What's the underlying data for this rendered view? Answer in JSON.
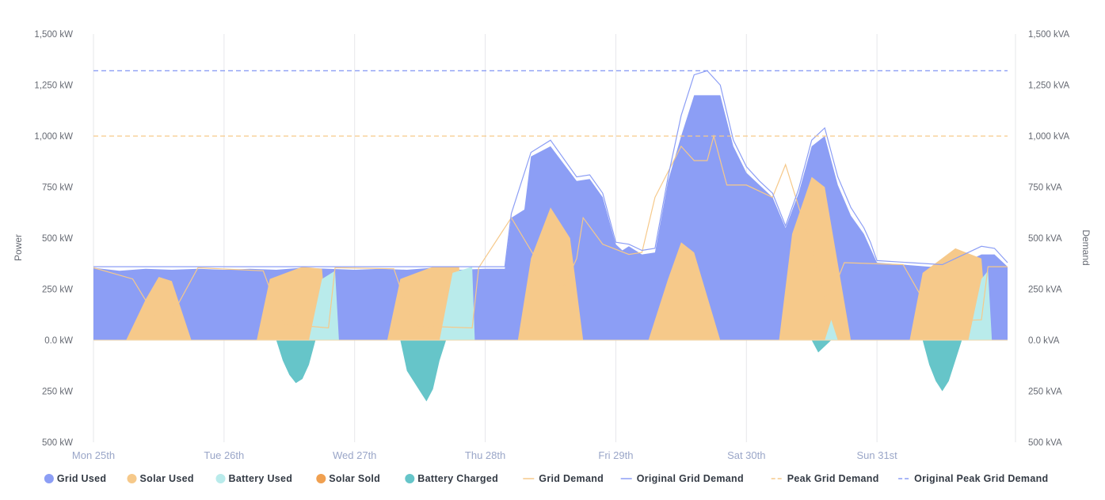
{
  "chart_data": {
    "type": "area",
    "x_categories": [
      "Mon 25th",
      "Tue 26th",
      "Wed 27th",
      "Thu 28th",
      "Fri 29th",
      "Sat 30th",
      "Sun 31st"
    ],
    "y_left": {
      "label": "Power",
      "range": [
        -500,
        1500
      ],
      "ticks": [
        1500,
        1250,
        1000,
        750,
        500,
        250,
        0,
        -250,
        -500
      ],
      "tick_labels": [
        "1,500 kW",
        "1,250 kW",
        "1,000 kW",
        "750 kW",
        "500 kW",
        "250 kW",
        "0.0 kW",
        "250 kW",
        "500 kW"
      ]
    },
    "y_right": {
      "label": "Demand",
      "range": [
        -500,
        1500
      ],
      "tick_labels": [
        "1,500 kVA",
        "1,250 kVA",
        "1,000 kVA",
        "750 kVA",
        "500 kVA",
        "250 kVA",
        "0.0 kVA",
        "250 kVA",
        "500 kVA"
      ]
    },
    "x_unit": "day",
    "x_range": [
      0,
      7
    ],
    "grid": "vertical",
    "legend_position": "bottom",
    "series": [
      {
        "name": "Grid Used",
        "kind": "area",
        "color": "#8c9ef5",
        "points": [
          [
            0,
            355
          ],
          [
            0.2,
            340
          ],
          [
            0.4,
            350
          ],
          [
            0.6,
            345
          ],
          [
            0.8,
            350
          ],
          [
            1.0,
            345
          ],
          [
            1.2,
            350
          ],
          [
            1.4,
            345
          ],
          [
            1.6,
            355
          ],
          [
            1.8,
            350
          ],
          [
            2.0,
            345
          ],
          [
            2.2,
            350
          ],
          [
            2.4,
            345
          ],
          [
            2.6,
            355
          ],
          [
            2.8,
            345
          ],
          [
            3.0,
            350
          ],
          [
            3.15,
            350
          ],
          [
            3.2,
            600
          ],
          [
            3.3,
            640
          ],
          [
            3.35,
            900
          ],
          [
            3.5,
            950
          ],
          [
            3.7,
            780
          ],
          [
            3.8,
            790
          ],
          [
            3.9,
            700
          ],
          [
            4.0,
            470
          ],
          [
            4.05,
            440
          ],
          [
            4.1,
            460
          ],
          [
            4.2,
            420
          ],
          [
            4.3,
            430
          ],
          [
            4.4,
            780
          ],
          [
            4.5,
            1000
          ],
          [
            4.6,
            1200
          ],
          [
            4.7,
            1200
          ],
          [
            4.8,
            1200
          ],
          [
            4.9,
            950
          ],
          [
            5.0,
            820
          ],
          [
            5.1,
            760
          ],
          [
            5.2,
            700
          ],
          [
            5.3,
            550
          ],
          [
            5.4,
            720
          ],
          [
            5.5,
            950
          ],
          [
            5.6,
            1000
          ],
          [
            5.7,
            760
          ],
          [
            5.8,
            610
          ],
          [
            5.9,
            520
          ],
          [
            5.95,
            450
          ],
          [
            6.0,
            380
          ],
          [
            6.2,
            370
          ],
          [
            6.4,
            360
          ],
          [
            6.6,
            360
          ],
          [
            6.8,
            420
          ],
          [
            6.9,
            420
          ],
          [
            7.0,
            360
          ]
        ]
      },
      {
        "name": "Solar Used",
        "kind": "area",
        "color": "#f6c98a",
        "points": [
          [
            0.25,
            0
          ],
          [
            0.4,
            200
          ],
          [
            0.5,
            310
          ],
          [
            0.6,
            290
          ],
          [
            0.75,
            0
          ],
          [
            1.25,
            0
          ],
          [
            1.35,
            300
          ],
          [
            1.6,
            360
          ],
          [
            1.75,
            350
          ],
          [
            1.8,
            0
          ],
          [
            2.25,
            0
          ],
          [
            2.35,
            300
          ],
          [
            2.6,
            360
          ],
          [
            2.8,
            360
          ],
          [
            2.85,
            0
          ],
          [
            3.25,
            0
          ],
          [
            3.35,
            400
          ],
          [
            3.5,
            650
          ],
          [
            3.65,
            500
          ],
          [
            3.75,
            0
          ],
          [
            4.25,
            0
          ],
          [
            4.4,
            300
          ],
          [
            4.5,
            480
          ],
          [
            4.6,
            430
          ],
          [
            4.8,
            0
          ],
          [
            5.25,
            0
          ],
          [
            5.35,
            520
          ],
          [
            5.5,
            800
          ],
          [
            5.6,
            750
          ],
          [
            5.8,
            0
          ],
          [
            6.25,
            0
          ],
          [
            6.35,
            330
          ],
          [
            6.6,
            450
          ],
          [
            6.8,
            400
          ],
          [
            6.85,
            0
          ]
        ]
      },
      {
        "name": "Battery Used",
        "kind": "area",
        "color": "#b9ebeb",
        "points": [
          [
            1.65,
            0
          ],
          [
            1.75,
            300
          ],
          [
            1.85,
            340
          ],
          [
            1.88,
            0
          ],
          [
            2.65,
            0
          ],
          [
            2.75,
            330
          ],
          [
            2.9,
            360
          ],
          [
            2.92,
            0
          ],
          [
            5.6,
            0
          ],
          [
            5.65,
            100
          ],
          [
            5.7,
            0
          ],
          [
            6.7,
            0
          ],
          [
            6.8,
            300
          ],
          [
            6.85,
            340
          ],
          [
            6.88,
            0
          ]
        ]
      },
      {
        "name": "Solar Sold",
        "kind": "area",
        "color": "#f0a050",
        "points": []
      },
      {
        "name": "Battery Charged",
        "kind": "area",
        "color": "#66c5c9",
        "points": [
          [
            1.4,
            0
          ],
          [
            1.45,
            -100
          ],
          [
            1.5,
            -170
          ],
          [
            1.55,
            -210
          ],
          [
            1.6,
            -190
          ],
          [
            1.65,
            -120
          ],
          [
            1.7,
            0
          ],
          [
            2.35,
            0
          ],
          [
            2.4,
            -150
          ],
          [
            2.5,
            -250
          ],
          [
            2.55,
            -300
          ],
          [
            2.6,
            -240
          ],
          [
            2.65,
            -100
          ],
          [
            2.7,
            0
          ],
          [
            5.5,
            0
          ],
          [
            5.55,
            -60
          ],
          [
            5.6,
            -30
          ],
          [
            5.65,
            0
          ],
          [
            6.35,
            0
          ],
          [
            6.4,
            -120
          ],
          [
            6.45,
            -200
          ],
          [
            6.5,
            -250
          ],
          [
            6.55,
            -200
          ],
          [
            6.6,
            -100
          ],
          [
            6.65,
            0
          ]
        ]
      },
      {
        "name": "Grid Demand",
        "kind": "line",
        "color": "#f6c98a",
        "points": [
          [
            0,
            355
          ],
          [
            0.3,
            300
          ],
          [
            0.5,
            90
          ],
          [
            0.6,
            120
          ],
          [
            0.8,
            355
          ],
          [
            1.3,
            340
          ],
          [
            1.45,
            80
          ],
          [
            1.8,
            60
          ],
          [
            1.85,
            355
          ],
          [
            2.3,
            350
          ],
          [
            2.45,
            70
          ],
          [
            2.9,
            60
          ],
          [
            2.95,
            355
          ],
          [
            3.2,
            600
          ],
          [
            3.5,
            280
          ],
          [
            3.6,
            260
          ],
          [
            3.7,
            400
          ],
          [
            3.75,
            600
          ],
          [
            3.9,
            470
          ],
          [
            4.1,
            420
          ],
          [
            4.2,
            430
          ],
          [
            4.3,
            700
          ],
          [
            4.5,
            950
          ],
          [
            4.6,
            880
          ],
          [
            4.7,
            880
          ],
          [
            4.75,
            1000
          ],
          [
            4.85,
            760
          ],
          [
            5.0,
            760
          ],
          [
            5.2,
            700
          ],
          [
            5.3,
            860
          ],
          [
            5.5,
            450
          ],
          [
            5.6,
            200
          ],
          [
            5.7,
            300
          ],
          [
            5.75,
            380
          ],
          [
            6.2,
            370
          ],
          [
            6.45,
            90
          ],
          [
            6.8,
            100
          ],
          [
            6.85,
            360
          ],
          [
            7.0,
            360
          ]
        ]
      },
      {
        "name": "Original Grid Demand",
        "kind": "line",
        "color": "#8c9ef5",
        "points": [
          [
            0,
            360
          ],
          [
            1,
            360
          ],
          [
            2,
            360
          ],
          [
            3,
            360
          ],
          [
            3.15,
            360
          ],
          [
            3.2,
            620
          ],
          [
            3.35,
            920
          ],
          [
            3.5,
            980
          ],
          [
            3.7,
            800
          ],
          [
            3.8,
            810
          ],
          [
            3.9,
            720
          ],
          [
            4.0,
            480
          ],
          [
            4.1,
            470
          ],
          [
            4.2,
            440
          ],
          [
            4.3,
            450
          ],
          [
            4.4,
            800
          ],
          [
            4.5,
            1100
          ],
          [
            4.6,
            1300
          ],
          [
            4.7,
            1320
          ],
          [
            4.8,
            1250
          ],
          [
            4.9,
            980
          ],
          [
            5.0,
            850
          ],
          [
            5.1,
            780
          ],
          [
            5.2,
            720
          ],
          [
            5.3,
            560
          ],
          [
            5.4,
            740
          ],
          [
            5.5,
            980
          ],
          [
            5.6,
            1040
          ],
          [
            5.7,
            800
          ],
          [
            5.8,
            650
          ],
          [
            5.9,
            550
          ],
          [
            5.95,
            480
          ],
          [
            6.0,
            390
          ],
          [
            6.5,
            370
          ],
          [
            6.8,
            460
          ],
          [
            6.9,
            450
          ],
          [
            7.0,
            380
          ]
        ]
      },
      {
        "name": "Peak Grid Demand",
        "kind": "dashed",
        "color": "#f6c98a",
        "value": 1000
      },
      {
        "name": "Original Peak Grid Demand",
        "kind": "dashed",
        "color": "#8c9ef5",
        "value": 1320
      }
    ]
  }
}
